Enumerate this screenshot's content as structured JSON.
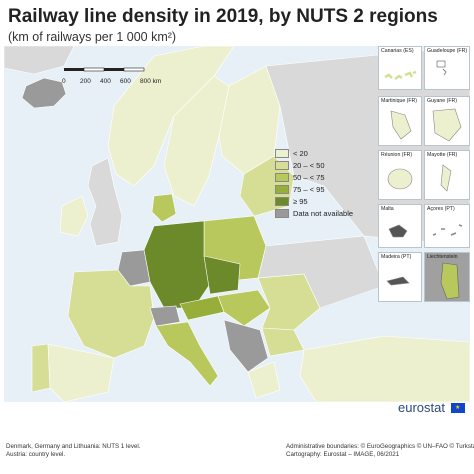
{
  "title": "Railway line density in 2019, by NUTS 2 regions",
  "subtitle": "(km of railways per 1 000 km²)",
  "scale_bar": {
    "ticks": [
      "0",
      "200",
      "400",
      "600",
      "800 km"
    ]
  },
  "legend": {
    "items": [
      {
        "label": "< 20",
        "color": "#edf0cf"
      },
      {
        "label": "20 – < 50",
        "color": "#d6de96"
      },
      {
        "label": "50 – < 75",
        "color": "#b8c85c"
      },
      {
        "label": "75 – < 95",
        "color": "#98ae3a"
      },
      {
        "label": "≥ 95",
        "color": "#6c8a2a"
      },
      {
        "label": "Data not available",
        "color": "#9a9a9a"
      }
    ]
  },
  "colors": {
    "sea": "#e6f0f6",
    "non_eu": "#d9d9d9",
    "border": "#ffffff",
    "iceland": "#9a9a9a"
  },
  "insets": [
    {
      "label": "Canarias (ES)"
    },
    {
      "label": "Guadeloupe (FR)"
    },
    {
      "label": "Martinique (FR)"
    },
    {
      "label": "Guyane (FR)"
    },
    {
      "label": "Réunion (FR)"
    },
    {
      "label": "Mayotte (FR)"
    },
    {
      "label": "Malta"
    },
    {
      "label": "Açores (PT)"
    },
    {
      "label": "Madeira (PT)"
    },
    {
      "label": "Liechtenstein"
    }
  ],
  "logo": {
    "text": "eurostat",
    "flag_stars": "★"
  },
  "footer": {
    "left": [
      "Denmark, Germany and Lithuania: NUTS 1 level.",
      "Austria: country level."
    ],
    "right": [
      "Administrative boundaries: © EuroGeographics © UN–FAO © Turkstat",
      "Cartography: Eurostat – IMAGE, 06/2021"
    ]
  }
}
